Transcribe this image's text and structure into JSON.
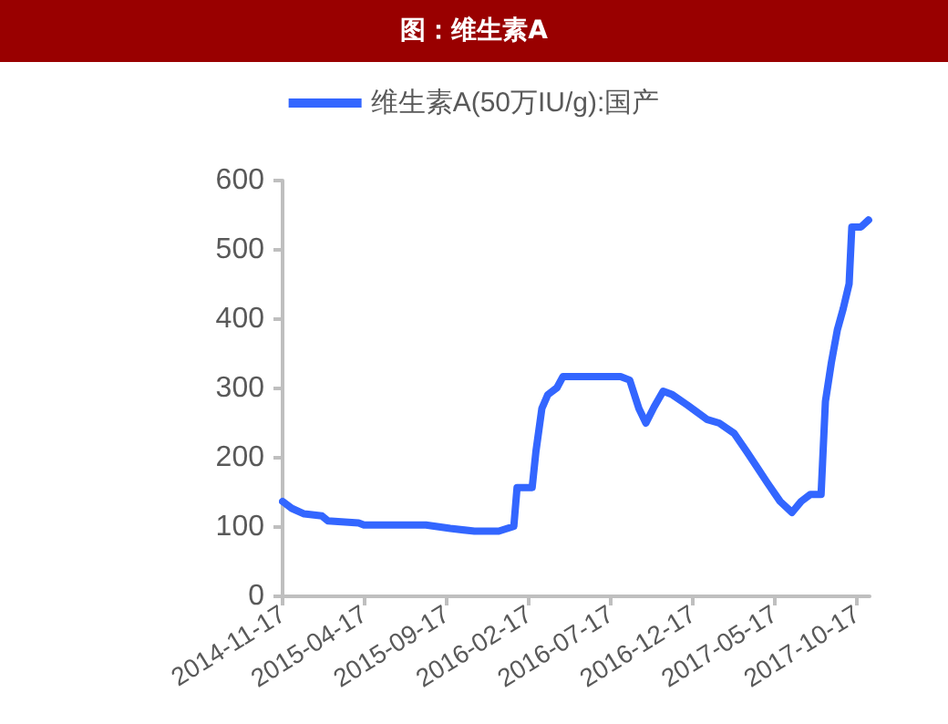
{
  "chart_data": {
    "type": "line",
    "title": "图：维生素A",
    "x": [
      "2014-11-17",
      "2014-12-04",
      "2014-12-27",
      "2015-01-29",
      "2015-02-09",
      "2015-04-07",
      "2015-04-17",
      "2015-08-10",
      "2015-09-24",
      "2015-11-08",
      "2015-12-23",
      "2016-01-20",
      "2016-01-26",
      "2016-02-23",
      "2016-03-01",
      "2016-03-12",
      "2016-03-23",
      "2016-04-09",
      "2016-04-20",
      "2016-08-05",
      "2016-08-22",
      "2016-09-08",
      "2016-09-21",
      "2016-10-06",
      "2016-10-23",
      "2016-11-09",
      "2016-12-07",
      "2017-01-13",
      "2017-02-04",
      "2017-03-04",
      "2017-03-27",
      "2017-05-05",
      "2017-05-28",
      "2017-06-19",
      "2017-07-06",
      "2017-07-23",
      "2017-08-12",
      "2017-08-20",
      "2017-08-31",
      "2017-09-11",
      "2017-09-22",
      "2017-10-03",
      "2017-10-08",
      "2017-10-25",
      "2017-11-08"
    ],
    "series": [
      {
        "name": "维生素A(50万IU/g):国产",
        "color": "#3366ff",
        "values": [
          137,
          127,
          119,
          116,
          109,
          106,
          103,
          103,
          98,
          94,
          94,
          101,
          157,
          157,
          209,
          271,
          291,
          301,
          317,
          317,
          312,
          271,
          250,
          273,
          296,
          291,
          276,
          255,
          250,
          235,
          209,
          163,
          137,
          121,
          137,
          147,
          147,
          281,
          337,
          384,
          415,
          451,
          533,
          533,
          543
        ]
      }
    ],
    "xlim": [
      "2014-11-17",
      "2017-11-10"
    ],
    "xticks": [
      "2014-11-17",
      "2015-04-17",
      "2015-09-17",
      "2016-02-17",
      "2016-07-17",
      "2016-12-17",
      "2017-05-17",
      "2017-10-17"
    ],
    "ylim": [
      0,
      600
    ],
    "yticks": [
      0,
      100,
      200,
      300,
      400,
      500,
      600
    ],
    "grid": false,
    "legend": "top",
    "marker": "none",
    "line_style": "solid"
  }
}
